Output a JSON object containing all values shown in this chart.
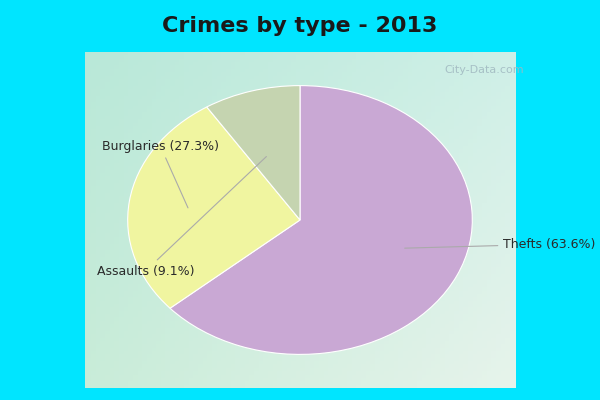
{
  "title": "Crimes by type - 2013",
  "slices": [
    {
      "label": "Thefts (63.6%)",
      "value": 63.6,
      "color": "#C9A8D4"
    },
    {
      "label": "Burglaries (27.3%)",
      "value": 27.3,
      "color": "#F0F5A0"
    },
    {
      "label": "Assaults (9.1%)",
      "value": 9.1,
      "color": "#C5D4B0"
    }
  ],
  "title_fontsize": 16,
  "title_color": "#1a1a1a",
  "label_fontsize": 9,
  "label_color": "#2a2a2a",
  "cyan_bar_color": "#00E5FF",
  "bg_color_top_left": "#B8E8D8",
  "bg_color_bottom_right": "#E8F4EC",
  "watermark": "City-Data.com",
  "start_angle": 90,
  "cyan_bar_height": 0.13
}
